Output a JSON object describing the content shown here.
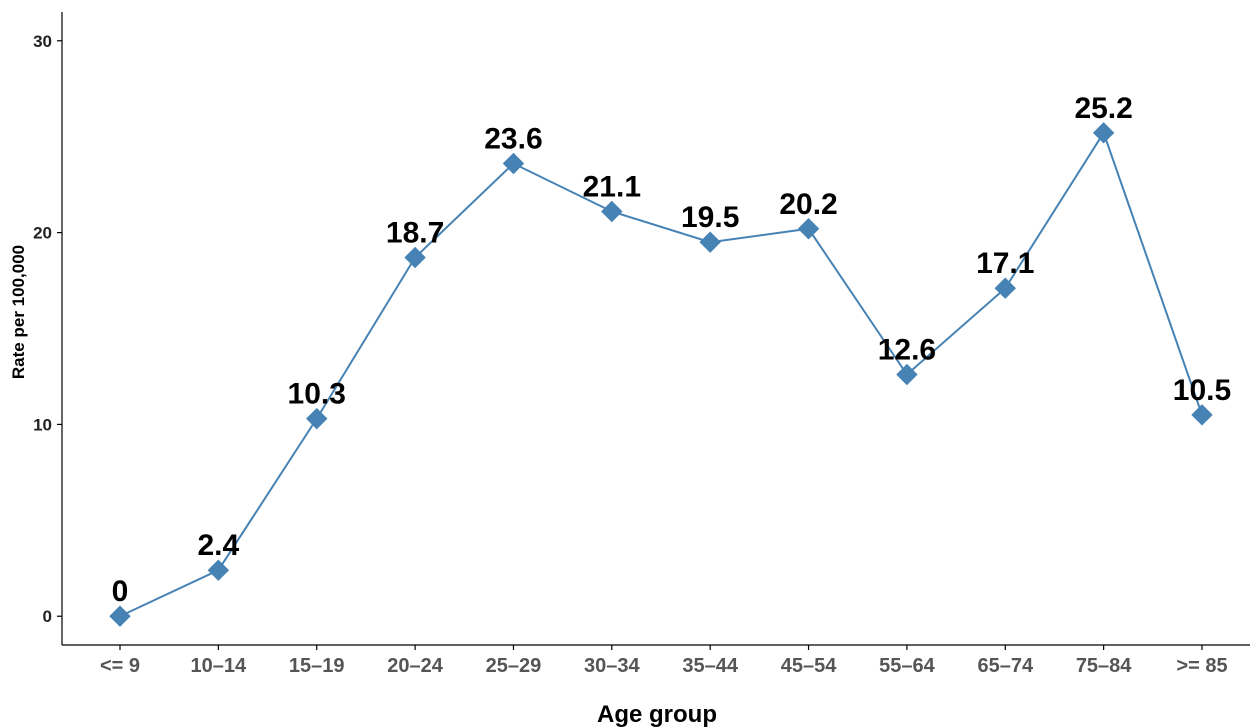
{
  "chart_data": {
    "type": "line",
    "title": "",
    "xlabel": "Age group",
    "ylabel": "Rate per 100,000",
    "categories": [
      "<= 9",
      "10–14",
      "15–19",
      "20–24",
      "25–29",
      "30–34",
      "35–44",
      "45–54",
      "55–64",
      "65–74",
      "75–84",
      ">= 85"
    ],
    "series": [
      {
        "values": [
          0,
          2.4,
          10.3,
          18.7,
          23.6,
          21.1,
          19.5,
          20.2,
          12.6,
          17.1,
          25.2,
          10.5
        ]
      }
    ],
    "data_labels": [
      "0",
      "2.4",
      "10.3",
      "18.7",
      "23.6",
      "21.1",
      "19.5",
      "20.2",
      "12.6",
      "17.1",
      "25.2",
      "10.5"
    ],
    "yticks": [
      0,
      10,
      20,
      30
    ],
    "ytick_labels": [
      "0",
      "10",
      "20",
      "30"
    ],
    "ylim": [
      -1.5,
      31.5
    ],
    "grid": false,
    "legend": "none",
    "marker": "diamond",
    "colors": {
      "line": "#4682b4",
      "marker": "#4682b4",
      "axis": "#000000"
    }
  }
}
